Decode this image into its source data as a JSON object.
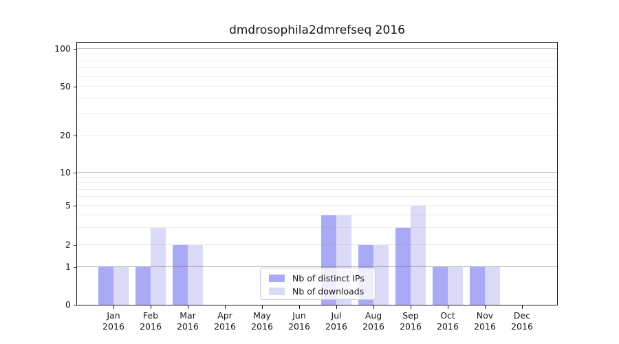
{
  "chart_data": {
    "type": "bar",
    "title": "dmdrosophila2dmrefseq 2016",
    "x": {
      "months": [
        "Jan",
        "Feb",
        "Mar",
        "Apr",
        "May",
        "Jun",
        "Jul",
        "Aug",
        "Sep",
        "Oct",
        "Nov",
        "Dec"
      ],
      "year": "2016"
    },
    "series": [
      {
        "name": "Nb of distinct IPs",
        "color": "#a9a9f5",
        "values": [
          1,
          1,
          2,
          0,
          0,
          0,
          4,
          2,
          3,
          1,
          1,
          0
        ]
      },
      {
        "name": "Nb of downloads",
        "color": "#dbdbf8",
        "values": [
          1,
          3,
          2,
          0,
          0,
          0,
          4,
          2,
          5,
          1,
          1,
          0
        ]
      }
    ],
    "y_axis": {
      "scale": "log-like (linear 0-1, log above)",
      "ticks": [
        0,
        1,
        2,
        5,
        10,
        20,
        50,
        100
      ],
      "range": [
        0,
        100
      ]
    },
    "grid": {
      "major": [
        1,
        10,
        100
      ],
      "minor": [
        2,
        3,
        4,
        5,
        6,
        7,
        8,
        9,
        20,
        30,
        40,
        50,
        60,
        70,
        80,
        90
      ]
    },
    "legend": {
      "position": "lower center"
    }
  }
}
